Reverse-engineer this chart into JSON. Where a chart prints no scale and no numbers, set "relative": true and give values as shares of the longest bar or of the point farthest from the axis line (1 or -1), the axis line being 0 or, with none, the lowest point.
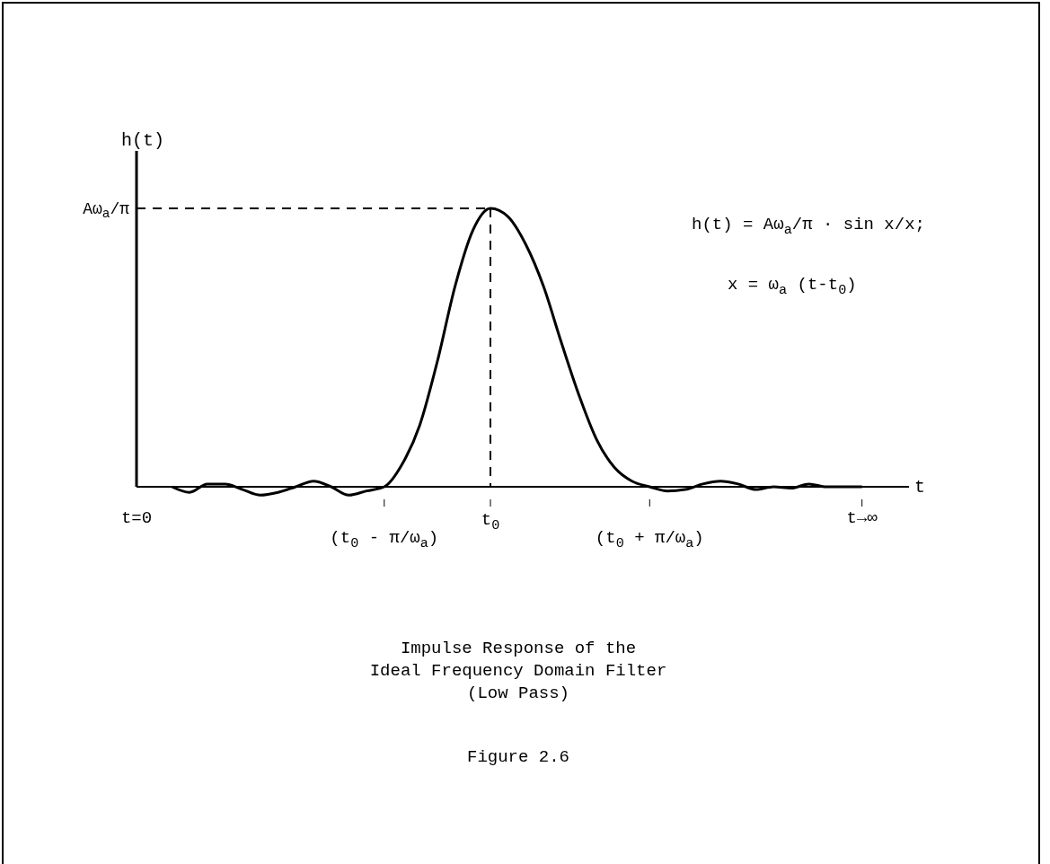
{
  "chart_data": {
    "type": "line",
    "relative": true,
    "title": "Impulse Response of the\nIdeal Frequency Domain Filter\n(Low Pass)",
    "xlabel": "t",
    "ylabel": "h(t)",
    "categories": [
      "t=0",
      null,
      null,
      null,
      null,
      null,
      null,
      null,
      null,
      null,
      null,
      null,
      null,
      null,
      "(t$_{0}$ - π/ω$_{a}$)",
      null,
      null,
      null,
      null,
      null,
      "t$_{0}$",
      null,
      null,
      null,
      null,
      null,
      null,
      null,
      null,
      "(t$_{0}$ + π/ω$_{a}$)",
      null,
      null,
      null,
      null,
      null,
      null,
      null,
      null,
      null,
      null,
      null,
      "t→∞"
    ],
    "series": [
      {
        "color": "#000000",
        "values": [
          null,
          null,
          0.0,
          -0.02,
          0.01,
          0.01,
          -0.01,
          -0.03,
          -0.02,
          0.0,
          0.02,
          0.0,
          -0.03,
          -0.015,
          0.0,
          0.08,
          0.22,
          0.45,
          0.72,
          0.92,
          1.0,
          0.97,
          0.87,
          0.72,
          0.52,
          0.33,
          0.17,
          0.07,
          0.02,
          0.0,
          -0.015,
          -0.01,
          0.01,
          0.02,
          0.01,
          -0.01,
          0.0,
          -0.005,
          0.01,
          0.0,
          0.0,
          0.0
        ]
      }
    ],
    "marker": "none",
    "line_style": "solid",
    "ref_lines": [
      {
        "axis": "y",
        "value": 1,
        "label": "Aω$_{a}$/π",
        "line_style": "dashed"
      },
      {
        "axis": "x",
        "value": "t$_{0}$",
        "line_style": "dashed"
      }
    ],
    "annotations": [
      "h(t) = Aω$_{a}$/π · sin x/x;",
      "x = ω$_{a}$ (t-t$_{0}$)",
      "Figure 2.6"
    ]
  }
}
